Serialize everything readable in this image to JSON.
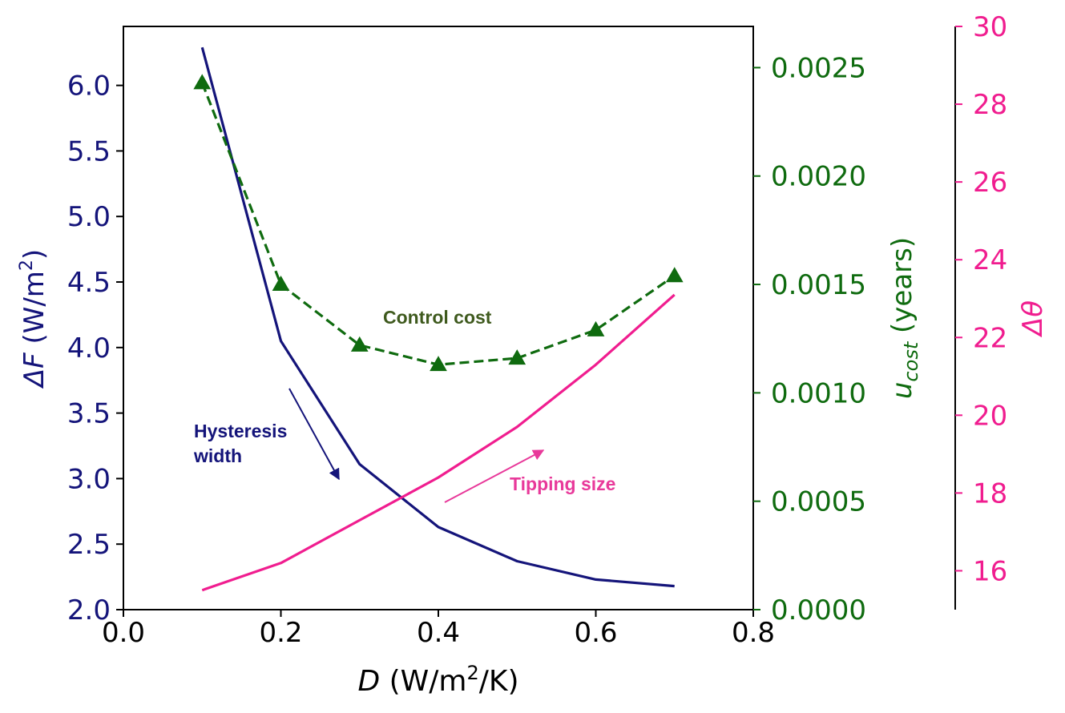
{
  "chart_data": {
    "type": "line",
    "x": [
      0.1,
      0.2,
      0.3,
      0.4,
      0.5,
      0.6,
      0.7
    ],
    "xlim": [
      0.0,
      0.8
    ],
    "xticks": [
      "0.0",
      "0.2",
      "0.4",
      "0.6",
      "0.8"
    ],
    "xlabel": {
      "sym": "D",
      "pre": " (W/m",
      "sup": "2",
      "post": "/K)"
    },
    "axes": {
      "left": {
        "label": {
          "pre": "ΔF",
          "unit": " (W/m",
          "sup": "2",
          "post": ")"
        },
        "ylim": [
          2.0,
          6.45
        ],
        "ticks": [
          "2.0",
          "2.5",
          "3.0",
          "3.5",
          "4.0",
          "4.5",
          "5.0",
          "5.5",
          "6.0"
        ],
        "color": "#14147a"
      },
      "right1": {
        "label": {
          "sym": "u",
          "sub": "cost",
          "post": " (years)"
        },
        "ylim": [
          0.0,
          0.00269
        ],
        "ticks": [
          "0.0000",
          "0.0005",
          "0.0010",
          "0.0015",
          "0.0020",
          "0.0025"
        ],
        "color": "#0f6b0f"
      },
      "right2": {
        "label": "Δθ",
        "ylim": [
          15.0,
          30.0
        ],
        "ticks": [
          "16",
          "18",
          "20",
          "22",
          "24",
          "26",
          "28",
          "30"
        ],
        "color": "#f01d8f"
      }
    },
    "series": [
      {
        "axis": "left",
        "color": "#14147a",
        "style": "solid",
        "marker": "none",
        "values": [
          6.29,
          4.05,
          3.11,
          2.63,
          2.37,
          2.23,
          2.18
        ]
      },
      {
        "axis": "right1",
        "color": "#0f6b0f",
        "style": "dashed",
        "marker": "triangle",
        "values": [
          0.00243,
          0.0015,
          0.00122,
          0.00113,
          0.00116,
          0.00129,
          0.00154
        ]
      },
      {
        "axis": "right2",
        "color": "#f01d8f",
        "style": "solid",
        "marker": "none",
        "values": [
          15.5,
          16.2,
          17.3,
          18.4,
          19.7,
          21.3,
          23.1
        ]
      }
    ],
    "annotations": [
      {
        "lines": [
          "Control cost"
        ],
        "color": "#3f5a1e"
      },
      {
        "lines": [
          "Hysteresis",
          "width"
        ],
        "color": "#14147a"
      },
      {
        "lines": [
          "Tipping size"
        ],
        "color": "#e8399a"
      }
    ]
  }
}
